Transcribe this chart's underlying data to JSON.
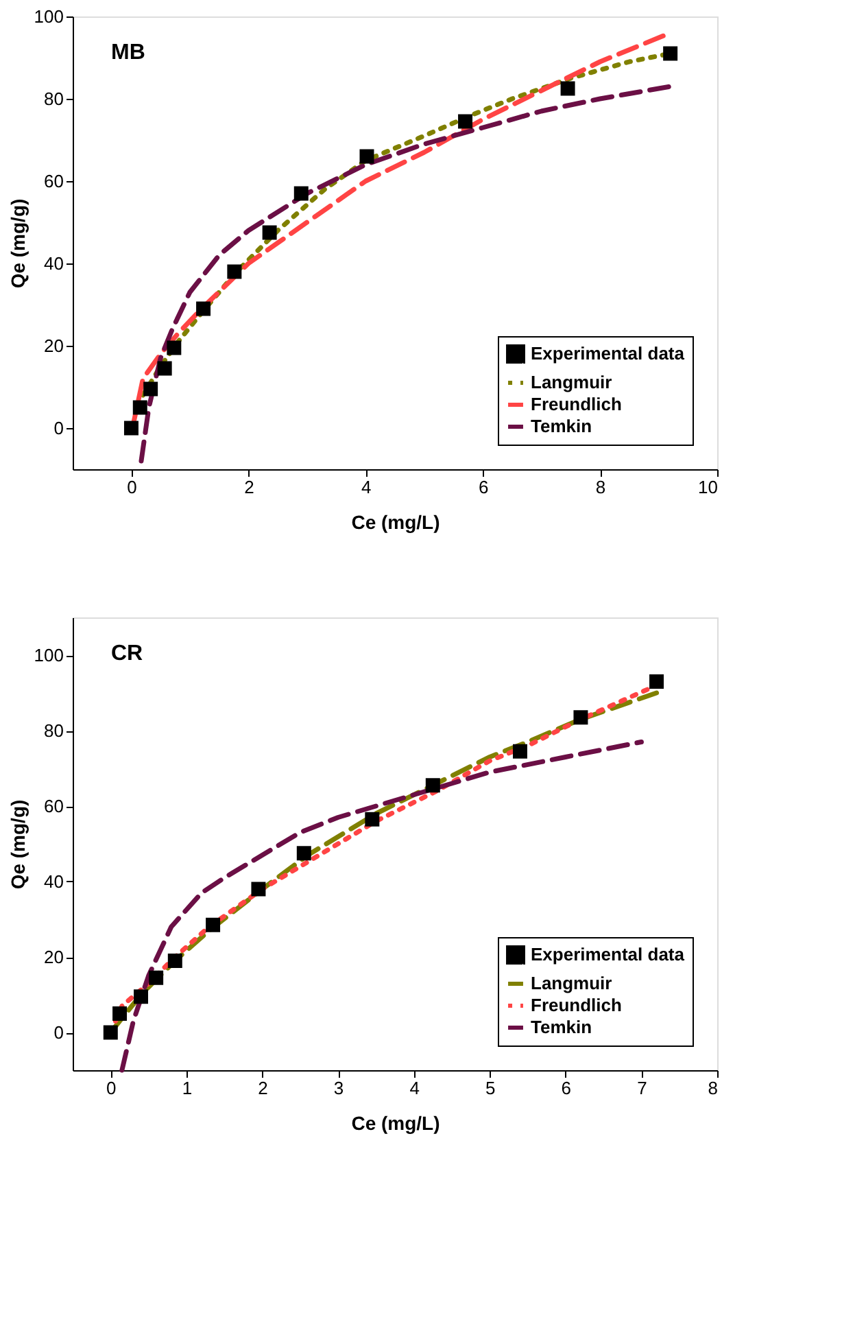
{
  "chart_data": [
    {
      "type": "line",
      "annotations": [
        "MB"
      ],
      "xlabel": "Ce (mg/L)",
      "ylabel": "Qe (mg/g)",
      "xlim": [
        -1,
        10
      ],
      "ylim": [
        -10,
        100
      ],
      "xticks": [
        0,
        2,
        4,
        6,
        8,
        10
      ],
      "yticks": [
        0,
        20,
        40,
        60,
        80,
        100
      ],
      "grid": false,
      "legend": "bottom right",
      "series": [
        {
          "name": "Experimental data",
          "type": "scatter",
          "marker": "square",
          "color": "#000000",
          "x": [
            0,
            0.15,
            0.33,
            0.57,
            0.73,
            1.23,
            1.76,
            2.36,
            2.9,
            4.02,
            5.7,
            7.45,
            9.2
          ],
          "values": [
            0,
            5,
            9.5,
            14.5,
            19.5,
            29,
            38,
            47.5,
            57,
            66,
            74.5,
            82.5,
            91
          ]
        },
        {
          "name": "Langmuir",
          "line_style": "dotted",
          "color": "#808000",
          "x": [
            0.2,
            0.5,
            0.8,
            1.2,
            1.8,
            2.5,
            3.3,
            4.0,
            5.0,
            5.8,
            6.5,
            7.5,
            8.5,
            9.2
          ],
          "values": [
            8,
            15,
            21,
            28,
            38,
            48,
            58,
            65,
            71,
            76,
            80,
            85,
            89,
            91
          ]
        },
        {
          "name": "Freundlich",
          "line_style": "dashed",
          "color": "#ff4444",
          "x": [
            0.02,
            0.2,
            0.5,
            0.8,
            1.2,
            2.0,
            3.0,
            4.0,
            5.0,
            6.0,
            7.0,
            8.0,
            9.2
          ],
          "values": [
            0,
            12,
            18,
            23,
            29,
            40,
            50,
            60,
            67,
            75,
            82,
            89,
            96
          ]
        },
        {
          "name": "Temkin",
          "line_style": "dashed",
          "color": "#6b0f45",
          "x": [
            0.17,
            0.3,
            0.5,
            0.7,
            1.0,
            1.5,
            2.0,
            3.0,
            4.0,
            5.0,
            6.0,
            7.0,
            8.0,
            9.2
          ],
          "values": [
            -8,
            5,
            17,
            24,
            33,
            42,
            48,
            57,
            64,
            69,
            73,
            77,
            80,
            83
          ]
        }
      ]
    },
    {
      "type": "line",
      "annotations": [
        "CR"
      ],
      "xlabel": "Ce (mg/L)",
      "ylabel": "Qe (mg/g)",
      "xlim": [
        -0.5,
        8
      ],
      "ylim": [
        -10,
        110
      ],
      "xticks": [
        0,
        1,
        2,
        3,
        4,
        5,
        6,
        7,
        8
      ],
      "yticks": [
        0,
        20,
        40,
        60,
        80,
        100
      ],
      "grid": false,
      "legend": "bottom right",
      "series": [
        {
          "name": "Experimental data",
          "type": "scatter",
          "marker": "square",
          "color": "#000000",
          "x": [
            0,
            0.12,
            0.4,
            0.6,
            0.85,
            1.35,
            1.95,
            2.55,
            3.45,
            4.25,
            5.4,
            6.2,
            7.2
          ],
          "values": [
            0,
            5,
            9.5,
            14.5,
            19,
            28.5,
            38,
            47.5,
            56.5,
            65.5,
            74.5,
            83.5,
            93
          ]
        },
        {
          "name": "Langmuir",
          "line_style": "dashed",
          "color": "#808000",
          "x": [
            0,
            0.4,
            0.85,
            1.3,
            2.0,
            2.6,
            3.5,
            4.3,
            5.0,
            5.5,
            6.2,
            7.2
          ],
          "values": [
            0,
            10,
            19,
            27,
            38,
            47,
            58,
            66,
            73,
            77,
            83,
            90
          ]
        },
        {
          "name": "Freundlich",
          "line_style": "dotted",
          "color": "#ff4444",
          "x": [
            0,
            0.15,
            0.5,
            0.85,
            1.3,
            2.0,
            2.5,
            3.5,
            4.3,
            5.0,
            5.5,
            6.2,
            7.2
          ],
          "values": [
            0,
            7,
            13,
            20,
            28,
            38,
            44,
            56,
            64,
            72,
            76,
            83,
            92
          ]
        },
        {
          "name": "Temkin",
          "line_style": "dashed",
          "color": "#6b0f45",
          "x": [
            0.15,
            0.3,
            0.5,
            0.8,
            1.2,
            1.5,
            2.0,
            2.5,
            3.0,
            3.5,
            4.0,
            4.5,
            5.0,
            6.0,
            7.0
          ],
          "values": [
            -10,
            3,
            15,
            28,
            37,
            41,
            47,
            53,
            57,
            60,
            63,
            66,
            69,
            73,
            77
          ]
        }
      ]
    }
  ]
}
